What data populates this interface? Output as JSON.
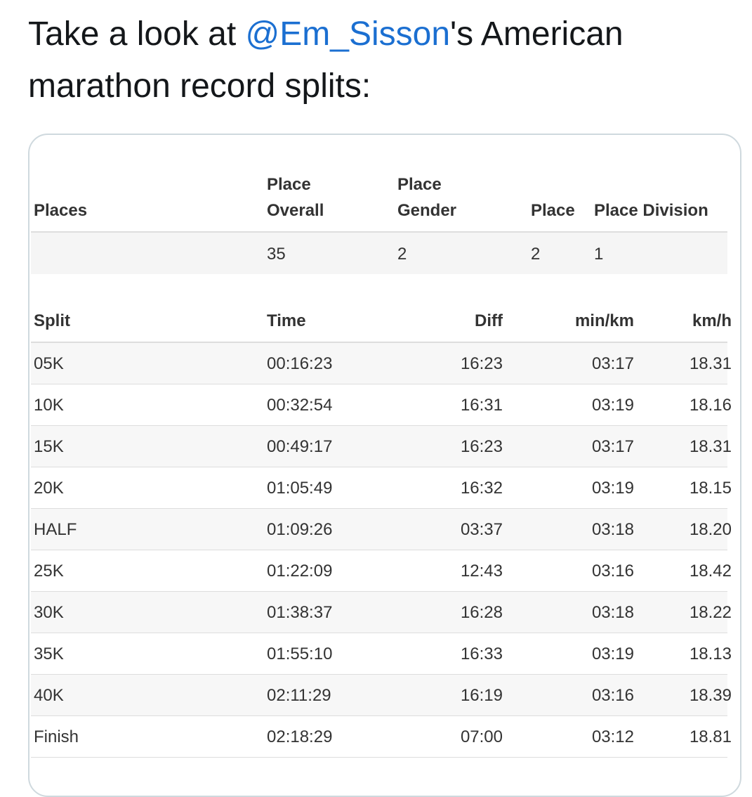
{
  "tweet": {
    "prefix": "Take a look at ",
    "mention": "@Em_Sisson",
    "suffix": "'s American marathon record splits:"
  },
  "places_table": {
    "headers": [
      "Places",
      "Place Overall",
      "Place Gender",
      "Place",
      "Place Division"
    ],
    "row": [
      "35",
      "2",
      "2",
      "1"
    ]
  },
  "splits_table": {
    "headers": [
      "Split",
      "Time",
      "Diff",
      "min/km",
      "km/h"
    ],
    "rows": [
      [
        "05K",
        "00:16:23",
        "16:23",
        "03:17",
        "18.31"
      ],
      [
        "10K",
        "00:32:54",
        "16:31",
        "03:19",
        "18.16"
      ],
      [
        "15K",
        "00:49:17",
        "16:23",
        "03:17",
        "18.31"
      ],
      [
        "20K",
        "01:05:49",
        "16:32",
        "03:19",
        "18.15"
      ],
      [
        "HALF",
        "01:09:26",
        "03:37",
        "03:18",
        "18.20"
      ],
      [
        "25K",
        "01:22:09",
        "12:43",
        "03:16",
        "18.42"
      ],
      [
        "30K",
        "01:38:37",
        "16:28",
        "03:18",
        "18.22"
      ],
      [
        "35K",
        "01:55:10",
        "16:33",
        "03:19",
        "18.13"
      ],
      [
        "40K",
        "02:11:29",
        "16:19",
        "03:16",
        "18.39"
      ],
      [
        "Finish",
        "02:18:29",
        "07:00",
        "03:12",
        "18.81"
      ]
    ]
  }
}
